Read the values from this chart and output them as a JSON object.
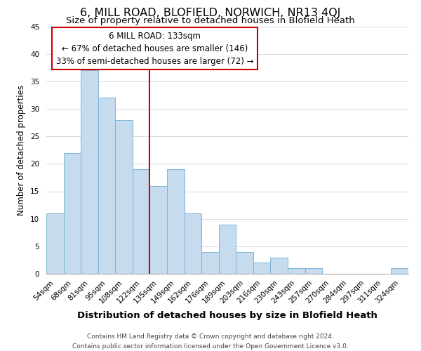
{
  "title": "6, MILL ROAD, BLOFIELD, NORWICH, NR13 4QJ",
  "subtitle": "Size of property relative to detached houses in Blofield Heath",
  "xlabel": "Distribution of detached houses by size in Blofield Heath",
  "ylabel": "Number of detached properties",
  "footer_line1": "Contains HM Land Registry data © Crown copyright and database right 2024.",
  "footer_line2": "Contains public sector information licensed under the Open Government Licence v3.0.",
  "bin_labels": [
    "54sqm",
    "68sqm",
    "81sqm",
    "95sqm",
    "108sqm",
    "122sqm",
    "135sqm",
    "149sqm",
    "162sqm",
    "176sqm",
    "189sqm",
    "203sqm",
    "216sqm",
    "230sqm",
    "243sqm",
    "257sqm",
    "270sqm",
    "284sqm",
    "297sqm",
    "311sqm",
    "324sqm"
  ],
  "bar_values": [
    11,
    22,
    37,
    32,
    28,
    19,
    16,
    19,
    11,
    4,
    9,
    4,
    2,
    3,
    1,
    1,
    0,
    0,
    0,
    0,
    1
  ],
  "bar_color": "#c6dcee",
  "bar_edgecolor": "#7ab4d4",
  "vline_x": 6,
  "vline_color": "#cc0000",
  "annotation_title": "6 MILL ROAD: 133sqm",
  "annotation_line1": "← 67% of detached houses are smaller (146)",
  "annotation_line2": "33% of semi-detached houses are larger (72) →",
  "annotation_box_facecolor": "white",
  "annotation_box_edgecolor": "#cc0000",
  "ylim": [
    0,
    45
  ],
  "yticks": [
    0,
    5,
    10,
    15,
    20,
    25,
    30,
    35,
    40,
    45
  ],
  "title_fontsize": 11.5,
  "subtitle_fontsize": 9.5,
  "xlabel_fontsize": 9.5,
  "ylabel_fontsize": 8.5,
  "tick_fontsize": 7.5,
  "annotation_fontsize": 8.5,
  "footer_fontsize": 6.5
}
